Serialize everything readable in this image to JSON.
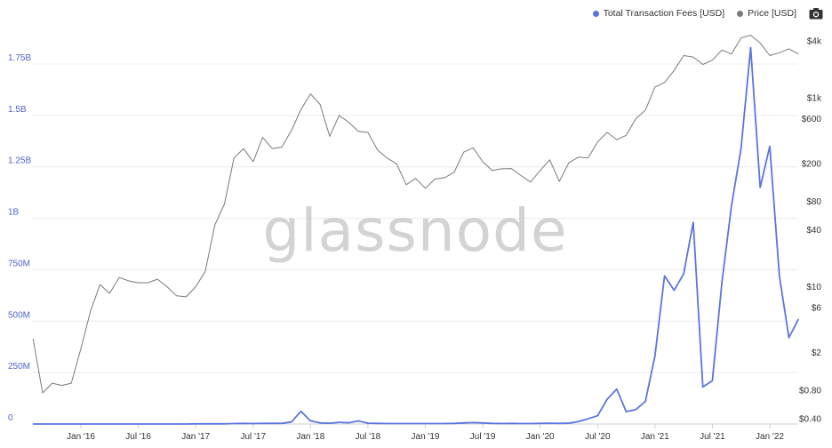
{
  "legend": {
    "fees_label": "Total Transaction Fees [USD]",
    "price_label": "Price [USD]",
    "fees_color": "#5b74e0",
    "price_color": "#7a7a7a"
  },
  "watermark": "glassnode",
  "toolbar": {
    "camera_icon": "camera-icon"
  },
  "chart_data": {
    "type": "line",
    "x_axis": {
      "type": "date",
      "tick_labels": [
        "Jan '16",
        "Jul '16",
        "Jan '17",
        "Jul '17",
        "Jan '18",
        "Jul '18",
        "Jan '19",
        "Jul '19",
        "Jan '20",
        "Jul '20",
        "Jan '21",
        "Jul '21",
        "Jan '22"
      ]
    },
    "y_left": {
      "ylim": [
        0,
        1950000000
      ],
      "ticks": [
        0,
        250000000,
        500000000,
        750000000,
        1000000000,
        1250000000,
        1500000000,
        1750000000
      ],
      "tick_labels": [
        "0",
        "250M",
        "500M",
        "750M",
        "1B",
        "1.25B",
        "1.5B",
        "1.75B"
      ]
    },
    "y_right": {
      "scale": "log",
      "ylim": [
        0.4,
        4000
      ],
      "ticks": [
        0.4,
        0.8,
        2,
        6,
        10,
        40,
        80,
        200,
        600,
        1000,
        4000
      ],
      "tick_labels": [
        "$0.40",
        "$0.80",
        "$2",
        "$6",
        "$10",
        "$40",
        "$80",
        "$200",
        "$600",
        "$1k",
        "$4k"
      ]
    },
    "grid": "horizontal",
    "legend_position": "top-right",
    "series": [
      {
        "name": "Total Transaction Fees [USD]",
        "axis": "left",
        "color": "#5b74e0",
        "points": [
          [
            "2015-08",
            0
          ],
          [
            "2015-09",
            0
          ],
          [
            "2015-10",
            0
          ],
          [
            "2015-11",
            0
          ],
          [
            "2015-12",
            0
          ],
          [
            "2016-01",
            0
          ],
          [
            "2016-02",
            0
          ],
          [
            "2016-03",
            0
          ],
          [
            "2016-04",
            0
          ],
          [
            "2016-05",
            0
          ],
          [
            "2016-06",
            0
          ],
          [
            "2016-07",
            0
          ],
          [
            "2016-08",
            0
          ],
          [
            "2016-09",
            0
          ],
          [
            "2016-10",
            0
          ],
          [
            "2016-11",
            0
          ],
          [
            "2016-12",
            0
          ],
          [
            "2017-01",
            1000000
          ],
          [
            "2017-02",
            1000000
          ],
          [
            "2017-03",
            1000000
          ],
          [
            "2017-04",
            1000000
          ],
          [
            "2017-05",
            2000000
          ],
          [
            "2017-06",
            3000000
          ],
          [
            "2017-07",
            2000000
          ],
          [
            "2017-08",
            3000000
          ],
          [
            "2017-09",
            3000000
          ],
          [
            "2017-10",
            3000000
          ],
          [
            "2017-11",
            10000000
          ],
          [
            "2017-12",
            62000000
          ],
          [
            "2018-01",
            15000000
          ],
          [
            "2018-02",
            5000000
          ],
          [
            "2018-03",
            4000000
          ],
          [
            "2018-04",
            8000000
          ],
          [
            "2018-05",
            6000000
          ],
          [
            "2018-06",
            15000000
          ],
          [
            "2018-07",
            4000000
          ],
          [
            "2018-08",
            3000000
          ],
          [
            "2018-09",
            2000000
          ],
          [
            "2018-10",
            2000000
          ],
          [
            "2018-11",
            2000000
          ],
          [
            "2018-12",
            2000000
          ],
          [
            "2019-01",
            2000000
          ],
          [
            "2019-02",
            2000000
          ],
          [
            "2019-03",
            2000000
          ],
          [
            "2019-04",
            3000000
          ],
          [
            "2019-05",
            5000000
          ],
          [
            "2019-06",
            7000000
          ],
          [
            "2019-07",
            5000000
          ],
          [
            "2019-08",
            3000000
          ],
          [
            "2019-09",
            2000000
          ],
          [
            "2019-10",
            3000000
          ],
          [
            "2019-11",
            2000000
          ],
          [
            "2019-12",
            2000000
          ],
          [
            "2020-01",
            3000000
          ],
          [
            "2020-02",
            4000000
          ],
          [
            "2020-03",
            3000000
          ],
          [
            "2020-04",
            4000000
          ],
          [
            "2020-05",
            12000000
          ],
          [
            "2020-06",
            25000000
          ],
          [
            "2020-07",
            40000000
          ],
          [
            "2020-08",
            120000000
          ],
          [
            "2020-09",
            170000000
          ],
          [
            "2020-10",
            60000000
          ],
          [
            "2020-11",
            70000000
          ],
          [
            "2020-12",
            110000000
          ],
          [
            "2021-01",
            330000000
          ],
          [
            "2021-02",
            720000000
          ],
          [
            "2021-03",
            650000000
          ],
          [
            "2021-04",
            730000000
          ],
          [
            "2021-05",
            980000000
          ],
          [
            "2021-06",
            180000000
          ],
          [
            "2021-07",
            210000000
          ],
          [
            "2021-08",
            690000000
          ],
          [
            "2021-09",
            1060000000
          ],
          [
            "2021-10",
            1340000000
          ],
          [
            "2021-11",
            1830000000
          ],
          [
            "2021-12",
            1150000000
          ],
          [
            "2022-01",
            1350000000
          ],
          [
            "2022-02",
            720000000
          ],
          [
            "2022-03",
            420000000
          ],
          [
            "2022-04",
            510000000
          ]
        ]
      },
      {
        "name": "Price [USD]",
        "axis": "right",
        "color": "#7a7a7a",
        "points": [
          [
            "2015-08",
            2.8
          ],
          [
            "2015-09",
            0.75
          ],
          [
            "2015-10",
            0.95
          ],
          [
            "2015-11",
            0.9
          ],
          [
            "2015-12",
            0.95
          ],
          [
            "2016-01",
            2.2
          ],
          [
            "2016-02",
            5.5
          ],
          [
            "2016-03",
            10.5
          ],
          [
            "2016-04",
            8.5
          ],
          [
            "2016-05",
            12.5
          ],
          [
            "2016-06",
            11.5
          ],
          [
            "2016-07",
            11.0
          ],
          [
            "2016-08",
            11.0
          ],
          [
            "2016-09",
            12.0
          ],
          [
            "2016-10",
            10.0
          ],
          [
            "2016-11",
            8.0
          ],
          [
            "2016-12",
            7.8
          ],
          [
            "2017-01",
            10.0
          ],
          [
            "2017-02",
            14.5
          ],
          [
            "2017-03",
            45
          ],
          [
            "2017-04",
            75
          ],
          [
            "2017-05",
            230
          ],
          [
            "2017-06",
            290
          ],
          [
            "2017-07",
            210
          ],
          [
            "2017-08",
            380
          ],
          [
            "2017-09",
            290
          ],
          [
            "2017-10",
            300
          ],
          [
            "2017-11",
            450
          ],
          [
            "2017-12",
            750
          ],
          [
            "2018-01",
            1100
          ],
          [
            "2018-02",
            850
          ],
          [
            "2018-03",
            390
          ],
          [
            "2018-04",
            650
          ],
          [
            "2018-05",
            550
          ],
          [
            "2018-06",
            440
          ],
          [
            "2018-07",
            430
          ],
          [
            "2018-08",
            280
          ],
          [
            "2018-09",
            230
          ],
          [
            "2018-10",
            200
          ],
          [
            "2018-11",
            120
          ],
          [
            "2018-12",
            140
          ],
          [
            "2019-01",
            110
          ],
          [
            "2019-02",
            138
          ],
          [
            "2019-03",
            142
          ],
          [
            "2019-04",
            162
          ],
          [
            "2019-05",
            265
          ],
          [
            "2019-06",
            295
          ],
          [
            "2019-07",
            210
          ],
          [
            "2019-08",
            170
          ],
          [
            "2019-09",
            177
          ],
          [
            "2019-10",
            178
          ],
          [
            "2019-11",
            150
          ],
          [
            "2019-12",
            128
          ],
          [
            "2020-01",
            170
          ],
          [
            "2020-02",
            220
          ],
          [
            "2020-03",
            130
          ],
          [
            "2020-04",
            205
          ],
          [
            "2020-05",
            235
          ],
          [
            "2020-06",
            230
          ],
          [
            "2020-07",
            340
          ],
          [
            "2020-08",
            430
          ],
          [
            "2020-09",
            360
          ],
          [
            "2020-10",
            400
          ],
          [
            "2020-11",
            600
          ],
          [
            "2020-12",
            740
          ],
          [
            "2021-01",
            1300
          ],
          [
            "2021-02",
            1450
          ],
          [
            "2021-03",
            1950
          ],
          [
            "2021-04",
            2800
          ],
          [
            "2021-05",
            2700
          ],
          [
            "2021-06",
            2250
          ],
          [
            "2021-07",
            2500
          ],
          [
            "2021-08",
            3200
          ],
          [
            "2021-09",
            2900
          ],
          [
            "2021-10",
            4300
          ],
          [
            "2021-11",
            4600
          ],
          [
            "2021-12",
            3800
          ],
          [
            "2022-01",
            2800
          ],
          [
            "2022-02",
            3000
          ],
          [
            "2022-03",
            3300
          ],
          [
            "2022-04",
            2900
          ]
        ]
      }
    ]
  }
}
